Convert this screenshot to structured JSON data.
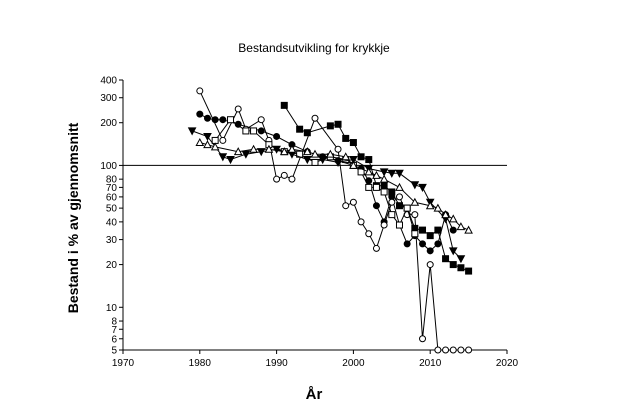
{
  "chart_data": {
    "type": "line",
    "title": "Bestandsutvikling for krykkje",
    "xlabel": "År",
    "ylabel": "Bestand i % av gjennomsnitt",
    "xlim": [
      1970,
      2020
    ],
    "ylim": [
      5,
      400
    ],
    "yscale": "log",
    "xticks": [
      "1970",
      "1980",
      "1990",
      "2000",
      "2010",
      "2020"
    ],
    "yticks": [
      "5",
      "6",
      "7",
      "8",
      "10",
      "20",
      "30",
      "40",
      "50",
      "60",
      "70",
      "80",
      "100",
      "200",
      "300",
      "400"
    ],
    "reference_line": 100,
    "legend": "none",
    "grid": false,
    "series": [
      {
        "marker": "circle-filled",
        "x": [
          1980,
          1981,
          1982,
          1983,
          1985,
          1988,
          1990,
          1992,
          1994,
          1996,
          1998,
          2000,
          2001,
          2002,
          2003,
          2004,
          2005,
          2006,
          2007,
          2008,
          2009,
          2010,
          2011,
          2012,
          2013
        ],
        "y": [
          230,
          215,
          210,
          210,
          195,
          175,
          160,
          140,
          125,
          115,
          108,
          100,
          95,
          78,
          52,
          40,
          60,
          38,
          28,
          32,
          28,
          25,
          28,
          45,
          35
        ]
      },
      {
        "marker": "circle-open",
        "x": [
          1980,
          1983,
          1985,
          1986,
          1988,
          1989,
          1990,
          1991,
          1992,
          1995,
          1998,
          1999,
          2000,
          2001,
          2002,
          2003,
          2004,
          2005,
          2006,
          2007,
          2008,
          2009,
          2010,
          2011,
          2012,
          2013,
          2014,
          2015
        ],
        "y": [
          335,
          150,
          250,
          180,
          210,
          150,
          80,
          85,
          80,
          215,
          130,
          52,
          55,
          40,
          33,
          26,
          38,
          55,
          60,
          45,
          45,
          6,
          20,
          5,
          5,
          5,
          5,
          5
        ]
      },
      {
        "marker": "square-filled",
        "x": [
          1991,
          1993,
          1994,
          1997,
          1998,
          1999,
          2000,
          2001,
          2002,
          2003,
          2004,
          2005,
          2006,
          2007,
          2008,
          2009,
          2010,
          2011,
          2012,
          2013,
          2014,
          2015
        ],
        "y": [
          265,
          180,
          170,
          190,
          195,
          155,
          145,
          115,
          110,
          72,
          72,
          65,
          52,
          50,
          36,
          35,
          32,
          35,
          22,
          20,
          19,
          18
        ]
      },
      {
        "marker": "square-open",
        "x": [
          1982,
          1984,
          1986,
          1987,
          1989,
          1991,
          1993,
          1995,
          1997,
          1999,
          2000,
          2001,
          2002,
          2003,
          2004,
          2005,
          2006,
          2007,
          2008
        ],
        "y": [
          150,
          210,
          175,
          175,
          140,
          125,
          120,
          105,
          115,
          110,
          100,
          90,
          70,
          70,
          65,
          45,
          38,
          50,
          33
        ]
      },
      {
        "marker": "triangle-down-filled",
        "x": [
          1979,
          1981,
          1983,
          1984,
          1986,
          1988,
          1990,
          1992,
          1994,
          1996,
          1998,
          2000,
          2002,
          2004,
          2005,
          2006,
          2008,
          2009,
          2010,
          2012,
          2013,
          2014
        ],
        "y": [
          175,
          160,
          115,
          110,
          120,
          125,
          130,
          120,
          110,
          110,
          105,
          110,
          95,
          90,
          88,
          88,
          73,
          70,
          55,
          42,
          25,
          22
        ]
      },
      {
        "marker": "triangle-up-open",
        "x": [
          1980,
          1981,
          1982,
          1985,
          1987,
          1989,
          1991,
          1992,
          1994,
          1995,
          1997,
          1999,
          2000,
          2002,
          2003,
          2004,
          2006,
          2008,
          2010,
          2011,
          2012,
          2013,
          2014,
          2015
        ],
        "y": [
          145,
          140,
          135,
          125,
          130,
          130,
          125,
          130,
          125,
          120,
          120,
          115,
          100,
          90,
          85,
          80,
          70,
          55,
          52,
          50,
          45,
          42,
          37,
          35
        ]
      }
    ]
  }
}
